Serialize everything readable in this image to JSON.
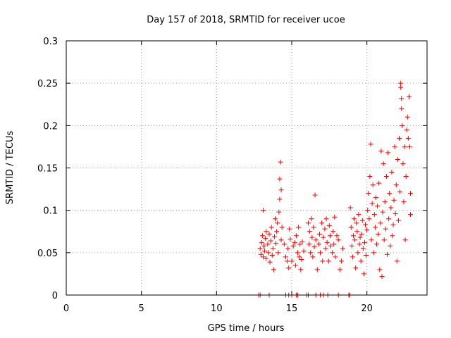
{
  "chart_data": {
    "type": "scatter",
    "title": "Day 157 of 2018, SRMTID for receiver ucoe",
    "xlabel": "GPS time / hours",
    "ylabel": "SRMTID / TECUs",
    "xlim": [
      0,
      24
    ],
    "ylim": [
      0,
      0.3
    ],
    "x_ticks": [
      0,
      5,
      10,
      15,
      20
    ],
    "x_tick_labels": [
      "0",
      "5",
      "10",
      "15",
      "20"
    ],
    "y_ticks": [
      0,
      0.05,
      0.1,
      0.15,
      0.2,
      0.25,
      0.3
    ],
    "y_tick_labels": [
      "0",
      "0.05",
      "0.1",
      "0.15",
      "0.2",
      "0.25",
      "0.3"
    ],
    "grid": true,
    "marker": "+",
    "color": "#ff0000",
    "series": [
      {
        "name": "SRMTID",
        "points": [
          [
            12.8,
            0
          ],
          [
            12.9,
            0
          ],
          [
            13.5,
            0
          ],
          [
            14.6,
            0
          ],
          [
            14.8,
            0
          ],
          [
            15.0,
            0
          ],
          [
            15.3,
            0
          ],
          [
            15.4,
            0
          ],
          [
            16.0,
            0
          ],
          [
            16.1,
            0
          ],
          [
            16.6,
            0
          ],
          [
            16.9,
            0
          ],
          [
            17.1,
            0
          ],
          [
            17.4,
            0
          ],
          [
            18.1,
            0
          ],
          [
            18.8,
            0
          ],
          [
            18.85,
            0
          ],
          [
            12.9,
            0.055
          ],
          [
            12.95,
            0.048
          ],
          [
            13.0,
            0.062
          ],
          [
            13.05,
            0.07
          ],
          [
            13.1,
            0.045
          ],
          [
            13.1,
            0.1
          ],
          [
            13.15,
            0.058
          ],
          [
            13.2,
            0.052
          ],
          [
            13.25,
            0.067
          ],
          [
            13.3,
            0.043
          ],
          [
            13.3,
            0.075
          ],
          [
            13.4,
            0.06
          ],
          [
            13.45,
            0.05
          ],
          [
            13.5,
            0.072
          ],
          [
            13.55,
            0.039
          ],
          [
            13.6,
            0.064
          ],
          [
            13.65,
            0.08
          ],
          [
            13.7,
            0.047
          ],
          [
            13.75,
            0.055
          ],
          [
            13.8,
            0.03
          ],
          [
            13.85,
            0.069
          ],
          [
            13.9,
            0.09
          ],
          [
            13.95,
            0.061
          ],
          [
            14.0,
            0.075
          ],
          [
            14.05,
            0.085
          ],
          [
            14.1,
            0.05
          ],
          [
            14.15,
            0.098
          ],
          [
            14.2,
            0.113
          ],
          [
            14.2,
            0.137
          ],
          [
            14.25,
            0.157
          ],
          [
            14.3,
            0.124
          ],
          [
            14.35,
            0.08
          ],
          [
            14.3,
            0.065
          ],
          [
            14.5,
            0.06
          ],
          [
            14.6,
            0.045
          ],
          [
            14.7,
            0.04
          ],
          [
            14.75,
            0.055
          ],
          [
            14.8,
            0.032
          ],
          [
            14.85,
            0.078
          ],
          [
            14.9,
            0.066
          ],
          [
            15.0,
            0.04
          ],
          [
            15.1,
            0.058
          ],
          [
            15.2,
            0.062
          ],
          [
            15.25,
            0.035
          ],
          [
            15.3,
            0.07
          ],
          [
            15.4,
            0.05
          ],
          [
            15.45,
            0.08
          ],
          [
            15.5,
            0.045
          ],
          [
            15.55,
            0.06
          ],
          [
            15.6,
            0.03
          ],
          [
            15.65,
            0.042
          ],
          [
            15.7,
            0.063
          ],
          [
            15.8,
            0.052
          ],
          [
            16.1,
            0.085
          ],
          [
            16.15,
            0.06
          ],
          [
            16.2,
            0.075
          ],
          [
            16.25,
            0.05
          ],
          [
            16.3,
            0.09
          ],
          [
            16.35,
            0.068
          ],
          [
            16.4,
            0.045
          ],
          [
            16.45,
            0.08
          ],
          [
            16.5,
            0.057
          ],
          [
            16.55,
            0.118
          ],
          [
            16.6,
            0.065
          ],
          [
            16.7,
            0.03
          ],
          [
            16.8,
            0.06
          ],
          [
            16.85,
            0.072
          ],
          [
            16.9,
            0.05
          ],
          [
            17.0,
            0.085
          ],
          [
            17.05,
            0.04
          ],
          [
            17.1,
            0.068
          ],
          [
            17.2,
            0.078
          ],
          [
            17.25,
            0.055
          ],
          [
            17.3,
            0.09
          ],
          [
            17.35,
            0.062
          ],
          [
            17.45,
            0.04
          ],
          [
            17.5,
            0.082
          ],
          [
            17.55,
            0.07
          ],
          [
            17.6,
            0.058
          ],
          [
            17.7,
            0.05
          ],
          [
            17.75,
            0.075
          ],
          [
            17.8,
            0.06
          ],
          [
            17.85,
            0.092
          ],
          [
            17.9,
            0.045
          ],
          [
            18.0,
            0.07
          ],
          [
            18.1,
            0.065
          ],
          [
            18.2,
            0.03
          ],
          [
            18.3,
            0.04
          ],
          [
            18.4,
            0.055
          ],
          [
            18.9,
            0.103
          ],
          [
            18.95,
            0.08
          ],
          [
            19.0,
            0.058
          ],
          [
            19.05,
            0.045
          ],
          [
            19.1,
            0.07
          ],
          [
            19.15,
            0.09
          ],
          [
            19.2,
            0.065
          ],
          [
            19.25,
            0.032
          ],
          [
            19.3,
            0.085
          ],
          [
            19.35,
            0.075
          ],
          [
            19.4,
            0.05
          ],
          [
            19.45,
            0.095
          ],
          [
            19.5,
            0.06
          ],
          [
            19.55,
            0.068
          ],
          [
            19.6,
            0.04
          ],
          [
            19.65,
            0.072
          ],
          [
            19.7,
            0.088
          ],
          [
            19.75,
            0.055
          ],
          [
            19.8,
            0.025
          ],
          [
            19.85,
            0.062
          ],
          [
            19.9,
            0.083
          ],
          [
            19.95,
            0.047
          ],
          [
            20.0,
            0.077
          ],
          [
            20.05,
            0.1
          ],
          [
            20.1,
            0.12
          ],
          [
            20.15,
            0.09
          ],
          [
            20.2,
            0.14
          ],
          [
            20.25,
            0.178
          ],
          [
            20.3,
            0.065
          ],
          [
            20.35,
            0.108
          ],
          [
            20.4,
            0.13
          ],
          [
            20.45,
            0.05
          ],
          [
            20.5,
            0.095
          ],
          [
            20.55,
            0.08
          ],
          [
            20.6,
            0.115
          ],
          [
            20.65,
            0.06
          ],
          [
            20.7,
            0.105
          ],
          [
            20.75,
            0.072
          ],
          [
            20.8,
            0.132
          ],
          [
            20.85,
            0.03
          ],
          [
            20.9,
            0.085
          ],
          [
            20.95,
            0.17
          ],
          [
            21.0,
            0.022
          ],
          [
            21.05,
            0.098
          ],
          [
            21.1,
            0.155
          ],
          [
            21.15,
            0.065
          ],
          [
            21.2,
            0.11
          ],
          [
            21.25,
            0.078
          ],
          [
            21.3,
            0.14
          ],
          [
            21.35,
            0.048
          ],
          [
            21.4,
            0.168
          ],
          [
            21.45,
            0.09
          ],
          [
            21.5,
            0.12
          ],
          [
            21.55,
            0.058
          ],
          [
            21.6,
            0.103
          ],
          [
            21.65,
            0.145
          ],
          [
            21.7,
            0.07
          ],
          [
            21.75,
            0.083
          ],
          [
            21.8,
            0.112
          ],
          [
            21.85,
            0.175
          ],
          [
            21.9,
            0.096
          ],
          [
            21.95,
            0.13
          ],
          [
            22.0,
            0.04
          ],
          [
            22.05,
            0.16
          ],
          [
            22.1,
            0.088
          ],
          [
            22.15,
            0.185
          ],
          [
            22.2,
            0.122
          ],
          [
            22.25,
            0.25
          ],
          [
            22.25,
            0.245
          ],
          [
            22.3,
            0.232
          ],
          [
            22.3,
            0.22
          ],
          [
            22.35,
            0.2
          ],
          [
            22.4,
            0.155
          ],
          [
            22.45,
            0.11
          ],
          [
            22.5,
            0.175
          ],
          [
            22.55,
            0.065
          ],
          [
            22.6,
            0.14
          ],
          [
            22.65,
            0.195
          ],
          [
            22.7,
            0.21
          ],
          [
            22.75,
            0.185
          ],
          [
            22.8,
            0.234
          ],
          [
            22.85,
            0.175
          ],
          [
            22.9,
            0.12
          ],
          [
            22.9,
            0.095
          ]
        ]
      }
    ]
  }
}
